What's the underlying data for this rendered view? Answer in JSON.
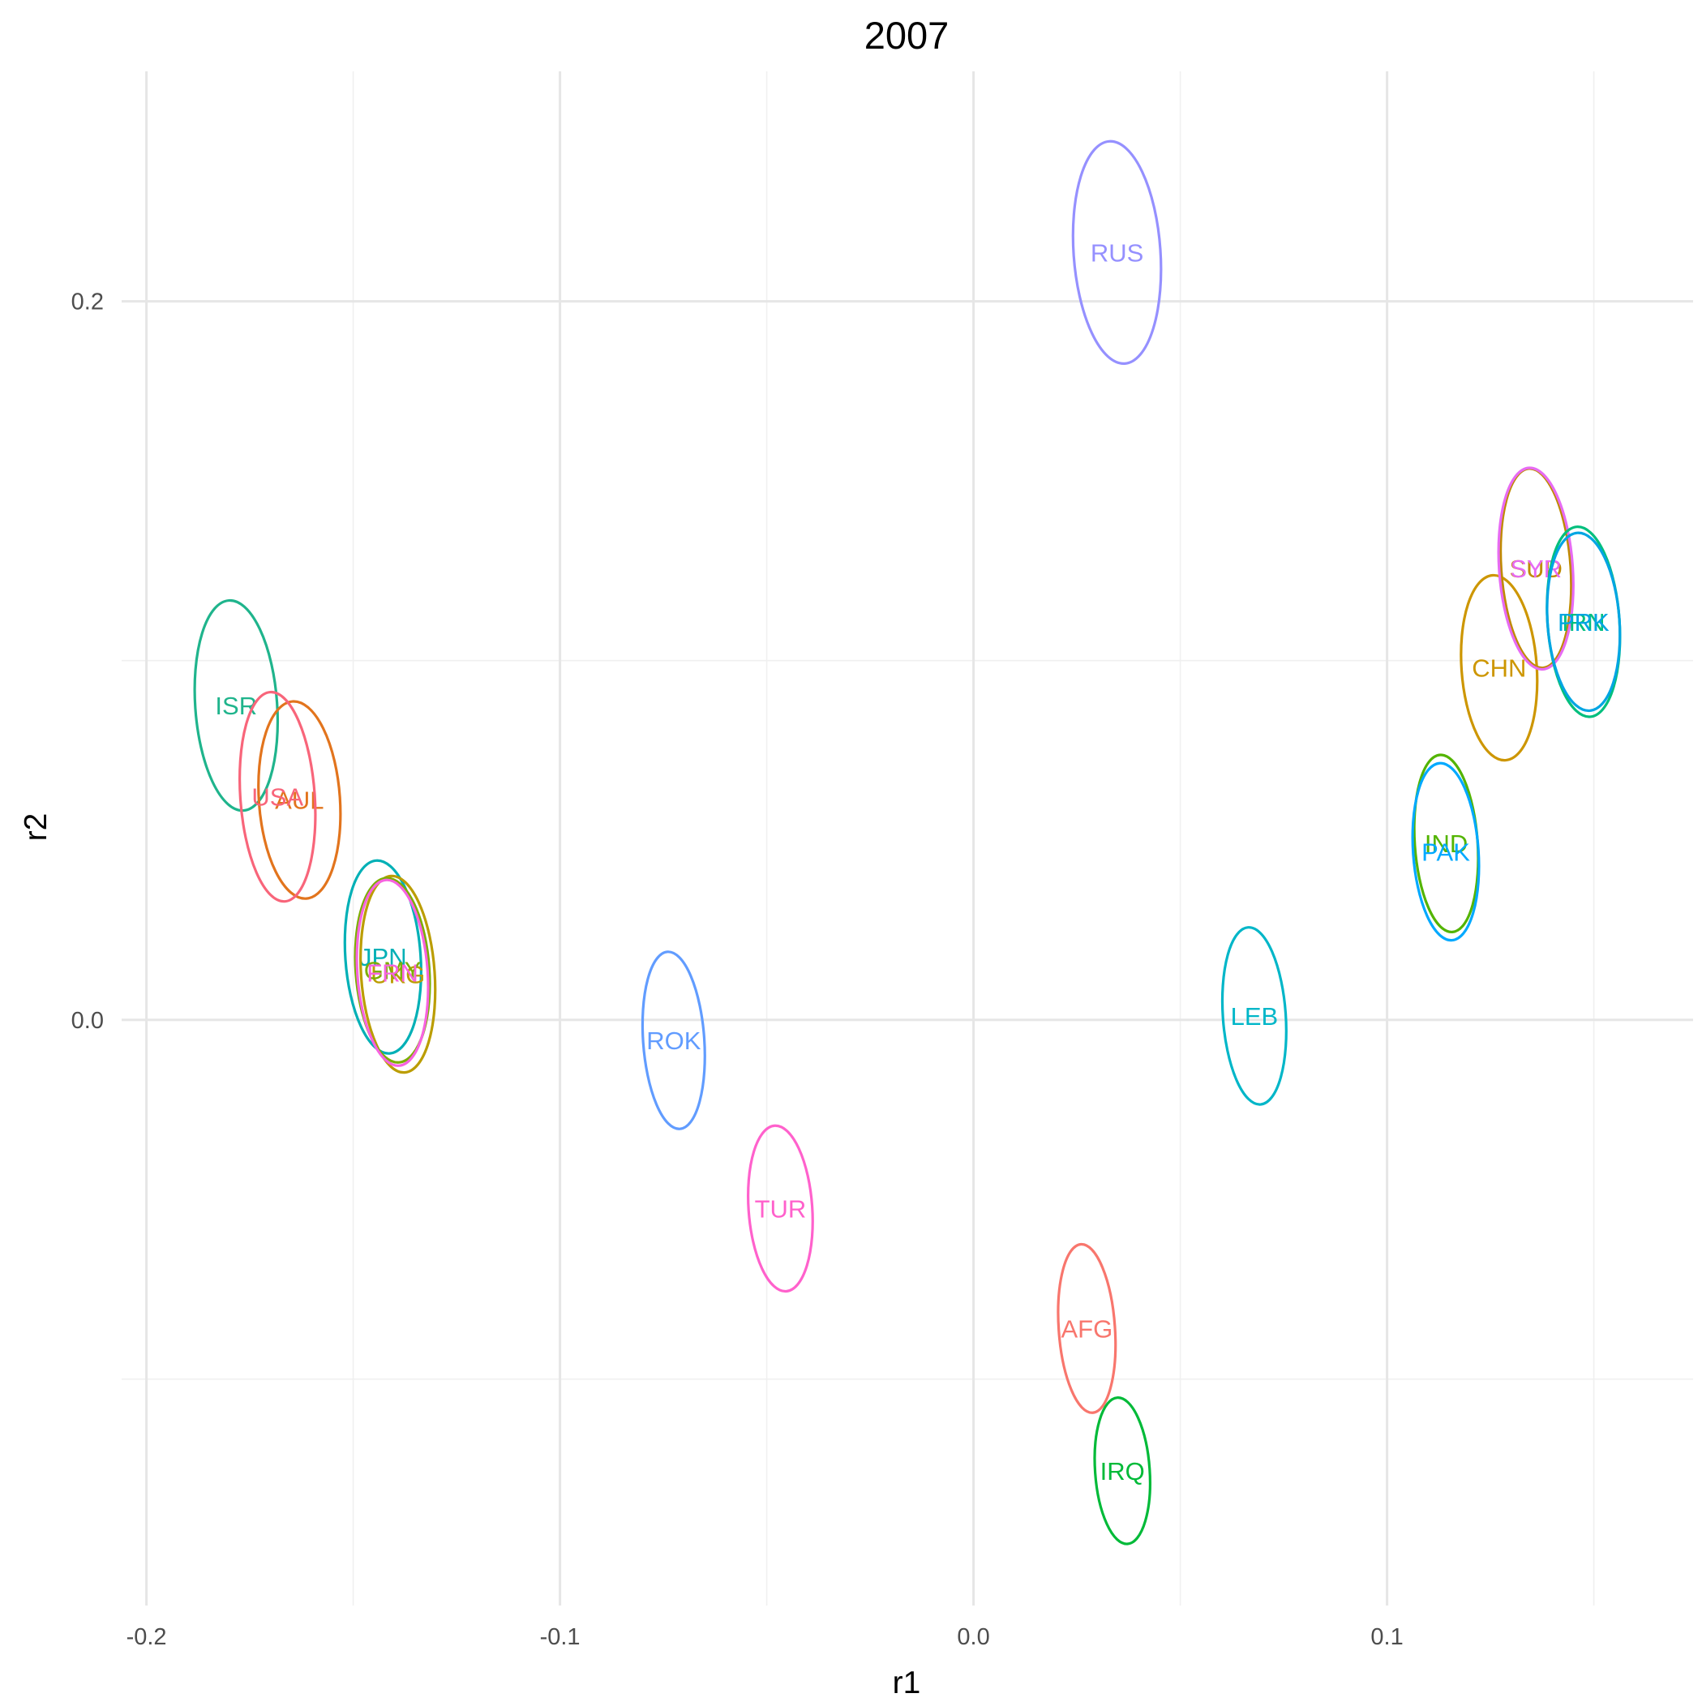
{
  "chart_data": {
    "type": "scatter",
    "title": "2007",
    "xlabel": "r1",
    "ylabel": "r2",
    "xlim": [
      -0.206,
      0.174
    ],
    "ylim": [
      -0.163,
      0.264
    ],
    "x_ticks": [
      "-0.2",
      "-0.1",
      "0.0",
      "0.1"
    ],
    "x_tick_values": [
      -0.2,
      -0.1,
      0.0,
      0.1
    ],
    "y_ticks": [
      "0.2",
      "0.0"
    ],
    "y_tick_values": [
      0.2,
      0.0
    ],
    "grid": true,
    "legend": "none",
    "mark": "ellipse",
    "points": [
      {
        "label": "RUS",
        "x": 0.0347,
        "y": 0.2136,
        "rx": 0.0105,
        "ry": 0.031,
        "color": "#9590FF"
      },
      {
        "label": "ISR",
        "x": -0.1783,
        "y": 0.0875,
        "rx": 0.0099,
        "ry": 0.0293,
        "color": "#1FB48C"
      },
      {
        "label": "AUL",
        "x": -0.163,
        "y": 0.0612,
        "rx": 0.0098,
        "ry": 0.0275,
        "color": "#E2741D"
      },
      {
        "label": "USA",
        "x": -0.1683,
        "y": 0.0621,
        "rx": 0.009,
        "ry": 0.0292,
        "color": "#F8657A"
      },
      {
        "label": "JPN",
        "x": -0.1428,
        "y": 0.0175,
        "rx": 0.0091,
        "ry": 0.0269,
        "color": "#00B0B6"
      },
      {
        "label": "UKG",
        "x": -0.1392,
        "y": 0.0127,
        "rx": 0.0089,
        "ry": 0.0274,
        "color": "#BB9D00"
      },
      {
        "label": "GMY",
        "x": -0.1405,
        "y": 0.0138,
        "rx": 0.0089,
        "ry": 0.0257,
        "color": "#7CAE00"
      },
      {
        "label": "FRN",
        "x": -0.1405,
        "y": 0.0131,
        "rx": 0.0085,
        "ry": 0.0259,
        "color": "#F763E0"
      },
      {
        "label": "ROK",
        "x": -0.0725,
        "y": -0.0057,
        "rx": 0.0074,
        "ry": 0.0247,
        "color": "#619CFF"
      },
      {
        "label": "TUR",
        "x": -0.0467,
        "y": -0.0525,
        "rx": 0.0077,
        "ry": 0.0231,
        "color": "#FF61CC"
      },
      {
        "label": "AFG",
        "x": 0.0274,
        "y": -0.0859,
        "rx": 0.0068,
        "ry": 0.0235,
        "color": "#F8766D"
      },
      {
        "label": "IRQ",
        "x": 0.036,
        "y": -0.1255,
        "rx": 0.0066,
        "ry": 0.0204,
        "color": "#00BA38"
      },
      {
        "label": "LEB",
        "x": 0.0679,
        "y": 0.0011,
        "rx": 0.0076,
        "ry": 0.0247,
        "color": "#00B6C8"
      },
      {
        "label": "IND",
        "x": 0.1143,
        "y": 0.0491,
        "rx": 0.0076,
        "ry": 0.0247,
        "color": "#53B400"
      },
      {
        "label": "PAK",
        "x": 0.1142,
        "y": 0.0468,
        "rx": 0.0079,
        "ry": 0.0247,
        "color": "#00A9FF"
      },
      {
        "label": "CHN",
        "x": 0.1271,
        "y": 0.098,
        "rx": 0.0091,
        "ry": 0.0258,
        "color": "#CD9600"
      },
      {
        "label": "SUD",
        "x": 0.136,
        "y": 0.1257,
        "rx": 0.0084,
        "ry": 0.0278,
        "color": "#BF8A00"
      },
      {
        "label": "SYR",
        "x": 0.136,
        "y": 0.1256,
        "rx": 0.0089,
        "ry": 0.0281,
        "color": "#E76BF3"
      },
      {
        "label": "IRN",
        "x": 0.1475,
        "y": 0.1108,
        "rx": 0.0087,
        "ry": 0.0265,
        "color": "#00BF7D"
      },
      {
        "label": "PRK",
        "x": 0.1475,
        "y": 0.1108,
        "rx": 0.0087,
        "ry": 0.0248,
        "color": "#00A5E3"
      }
    ]
  }
}
